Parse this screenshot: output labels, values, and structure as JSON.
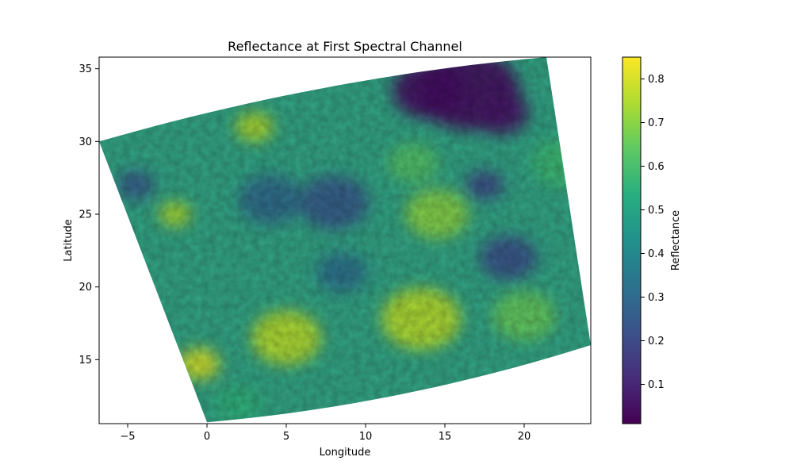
{
  "chart_data": {
    "type": "heatmap",
    "title": "Reflectance at First Spectral Channel",
    "xlabel": "Longitude",
    "ylabel": "Latitude",
    "xlim": [
      -6.8,
      24.2
    ],
    "ylim": [
      10.6,
      35.8
    ],
    "x_ticks": [
      -5,
      0,
      5,
      10,
      15,
      20
    ],
    "x_tick_labels": [
      "−5",
      "0",
      "5",
      "10",
      "15",
      "20"
    ],
    "y_ticks": [
      15,
      20,
      25,
      30,
      35
    ],
    "y_tick_labels": [
      "15",
      "20",
      "25",
      "30",
      "35"
    ],
    "colormap": "viridis",
    "colorbar": {
      "label": "Reflectance",
      "range": [
        0.01,
        0.85
      ],
      "ticks": [
        0.1,
        0.2,
        0.3,
        0.4,
        0.5,
        0.6,
        0.7,
        0.8
      ],
      "tick_labels": [
        "0.1",
        "0.2",
        "0.3",
        "0.4",
        "0.5",
        "0.6",
        "0.7",
        "0.8"
      ]
    },
    "swath_corners": [
      {
        "lon": -6.8,
        "lat": 30.0
      },
      {
        "lon": 21.4,
        "lat": 35.8
      },
      {
        "lon": 24.2,
        "lat": 16.0
      },
      {
        "lon": 0.0,
        "lat": 10.7
      }
    ],
    "regions": [
      {
        "lon": 16.5,
        "lat": 33.5,
        "value": 0.04,
        "radius": 3.2
      },
      {
        "lon": 14.0,
        "lat": 33.5,
        "value": 0.05,
        "radius": 2.3
      },
      {
        "lon": 18.5,
        "lat": 32.0,
        "value": 0.06,
        "radius": 1.8
      },
      {
        "lon": 17.5,
        "lat": 27.0,
        "value": 0.2,
        "radius": 1.2
      },
      {
        "lon": 19.0,
        "lat": 22.0,
        "value": 0.22,
        "radius": 1.8
      },
      {
        "lon": 8.0,
        "lat": 25.8,
        "value": 0.25,
        "radius": 2.2
      },
      {
        "lon": 4.0,
        "lat": 26.0,
        "value": 0.3,
        "radius": 2.0
      },
      {
        "lon": -4.5,
        "lat": 27.0,
        "value": 0.25,
        "radius": 1.2
      },
      {
        "lon": 8.5,
        "lat": 21.0,
        "value": 0.32,
        "radius": 1.6
      },
      {
        "lon": 14.5,
        "lat": 25.0,
        "value": 0.7,
        "radius": 2.0
      },
      {
        "lon": 13.0,
        "lat": 28.5,
        "value": 0.62,
        "radius": 1.6
      },
      {
        "lon": 3.0,
        "lat": 31.0,
        "value": 0.75,
        "radius": 1.2
      },
      {
        "lon": 5.0,
        "lat": 16.5,
        "value": 0.76,
        "radius": 2.2
      },
      {
        "lon": 13.5,
        "lat": 17.8,
        "value": 0.76,
        "radius": 2.5
      },
      {
        "lon": -0.5,
        "lat": 14.7,
        "value": 0.8,
        "radius": 1.3
      },
      {
        "lon": -2.0,
        "lat": 25.0,
        "value": 0.75,
        "radius": 1.0
      },
      {
        "lon": 2.0,
        "lat": 12.0,
        "value": 0.55,
        "radius": 1.5
      },
      {
        "lon": 20.0,
        "lat": 18.0,
        "value": 0.65,
        "radius": 2.0
      },
      {
        "lon": 22.5,
        "lat": 28.5,
        "value": 0.58,
        "radius": 2.0
      }
    ]
  }
}
